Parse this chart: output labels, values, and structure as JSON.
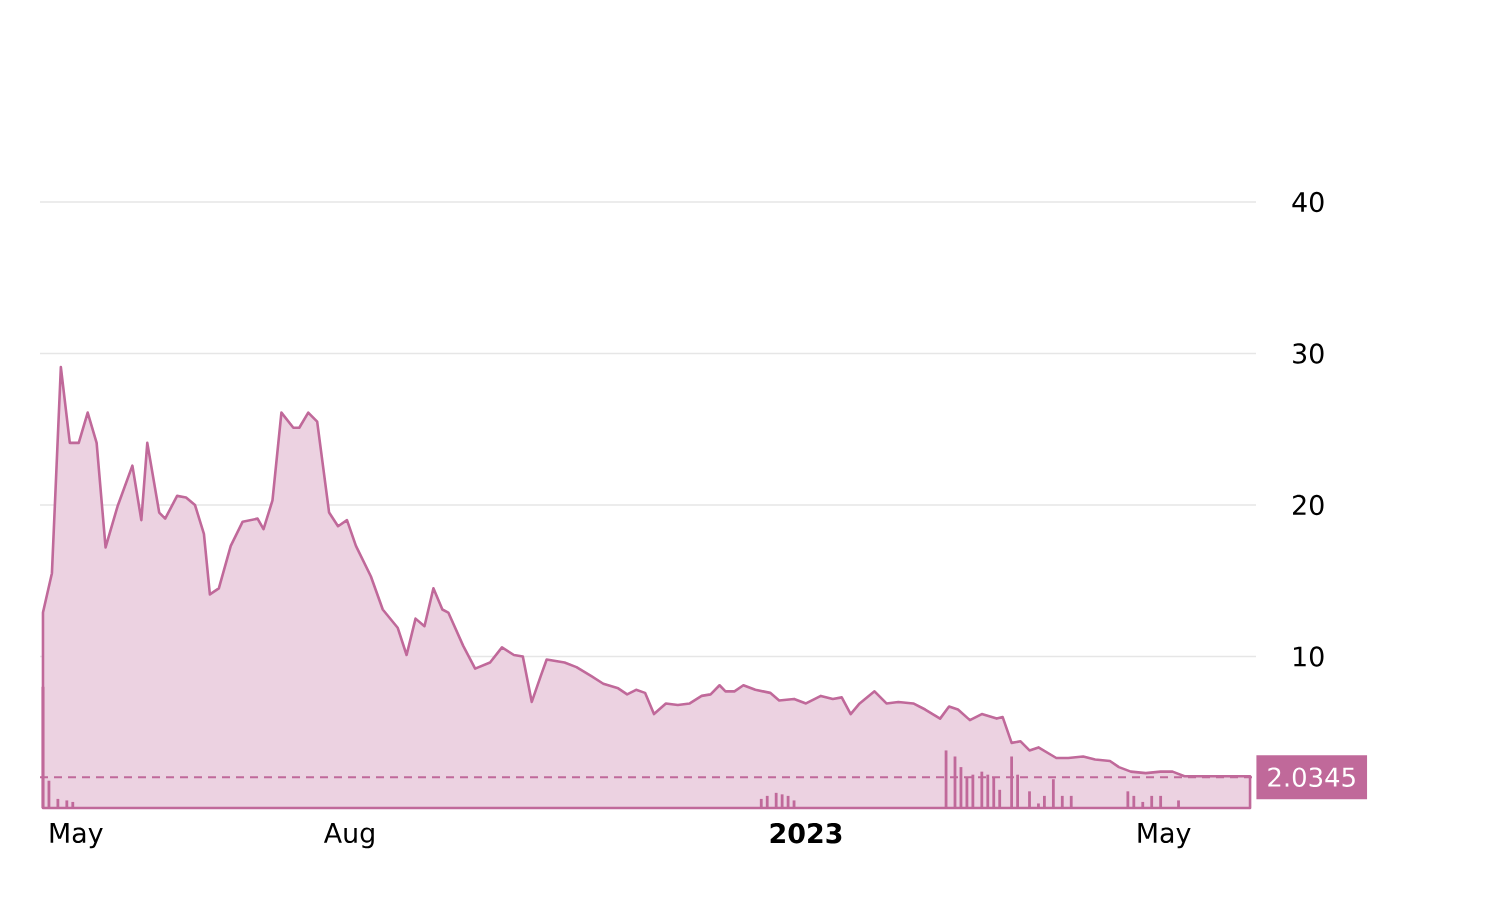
{
  "chart_data": {
    "type": "area",
    "xlim": [
      "2022-04-19",
      "2023-06-01"
    ],
    "xticks": [
      {
        "value": "2022-05-01",
        "label": "May"
      },
      {
        "value": "2022-08-01",
        "label": "Aug"
      },
      {
        "value": "2023-01-01",
        "label": "**2023**"
      },
      {
        "value": "2023-05-01",
        "label": "May"
      }
    ],
    "ylim": [
      0,
      40
    ],
    "yticks": [
      10,
      20,
      30,
      40
    ],
    "grid": "y",
    "ref_lines": [
      {
        "axis": "y",
        "value": 2.0345,
        "label": "2.0345",
        "color": "#c0699a",
        "line_style": "dashed"
      }
    ],
    "series": [
      {
        "color": "#c0699a",
        "x": [
          "2022-04-20",
          "2022-04-23",
          "2022-04-26",
          "2022-04-29",
          "2022-05-02",
          "2022-05-05",
          "2022-05-08",
          "2022-05-11",
          "2022-05-15",
          "2022-05-20",
          "2022-05-23",
          "2022-05-25",
          "2022-05-29",
          "2022-05-31",
          "2022-06-04",
          "2022-06-07",
          "2022-06-10",
          "2022-06-13",
          "2022-06-15",
          "2022-06-18",
          "2022-06-22",
          "2022-06-26",
          "2022-07-01",
          "2022-07-03",
          "2022-07-06",
          "2022-07-09",
          "2022-07-13",
          "2022-07-15",
          "2022-07-18",
          "2022-07-21",
          "2022-07-25",
          "2022-07-28",
          "2022-07-31",
          "2022-08-03",
          "2022-08-08",
          "2022-08-12",
          "2022-08-17",
          "2022-08-20",
          "2022-08-23",
          "2022-08-26",
          "2022-08-29",
          "2022-09-01",
          "2022-09-03",
          "2022-09-08",
          "2022-09-12",
          "2022-09-17",
          "2022-09-21",
          "2022-09-25",
          "2022-09-28",
          "2022-10-01",
          "2022-10-04",
          "2022-10-06",
          "2022-10-12",
          "2022-10-16",
          "2022-10-21",
          "2022-10-25",
          "2022-10-30",
          "2022-11-02",
          "2022-11-05",
          "2022-11-08",
          "2022-11-11",
          "2022-11-15",
          "2022-11-19",
          "2022-11-23",
          "2022-11-27",
          "2022-11-30",
          "2022-12-03",
          "2022-12-05",
          "2022-12-08",
          "2022-12-11",
          "2022-12-15",
          "2022-12-20",
          "2022-12-23",
          "2022-12-28",
          "2023-01-01",
          "2023-01-06",
          "2023-01-10",
          "2023-01-13",
          "2023-01-16",
          "2023-01-19",
          "2023-01-24",
          "2023-01-28",
          "2023-02-01",
          "2023-02-06",
          "2023-02-10",
          "2023-02-15",
          "2023-02-18",
          "2023-02-21",
          "2023-02-25",
          "2023-03-01",
          "2023-03-06",
          "2023-03-08",
          "2023-03-11",
          "2023-03-14",
          "2023-03-17",
          "2023-03-20",
          "2023-03-26",
          "2023-03-30",
          "2023-04-04",
          "2023-04-08",
          "2023-04-13",
          "2023-04-16",
          "2023-04-20",
          "2023-04-25",
          "2023-04-30",
          "2023-05-04",
          "2023-05-08",
          "2023-05-17",
          "2023-05-26",
          "2023-05-30"
        ],
        "values": [
          12.9,
          15.5,
          29.1,
          24.1,
          24.1,
          26.1,
          24.1,
          17.2,
          19.9,
          22.6,
          19.0,
          24.1,
          19.5,
          19.1,
          20.6,
          20.5,
          20.0,
          18.1,
          14.1,
          14.5,
          17.3,
          18.9,
          19.1,
          18.4,
          20.3,
          26.1,
          25.1,
          25.1,
          26.1,
          25.5,
          19.5,
          18.6,
          19.0,
          17.3,
          15.3,
          13.1,
          11.9,
          10.1,
          12.5,
          12.0,
          14.5,
          13.1,
          12.9,
          10.7,
          9.2,
          9.6,
          10.6,
          10.1,
          10.0,
          7.0,
          8.7,
          9.8,
          9.6,
          9.3,
          8.7,
          8.2,
          7.9,
          7.5,
          7.8,
          7.6,
          6.2,
          6.9,
          6.8,
          6.9,
          7.4,
          7.5,
          8.1,
          7.7,
          7.7,
          8.1,
          7.8,
          7.6,
          7.1,
          7.2,
          6.9,
          7.4,
          7.2,
          7.3,
          6.2,
          6.9,
          7.7,
          6.9,
          7.0,
          6.9,
          6.5,
          5.9,
          6.7,
          6.5,
          5.8,
          6.2,
          5.9,
          6.0,
          4.3,
          4.4,
          3.8,
          4.0,
          3.3,
          3.3,
          3.4,
          3.2,
          3.1,
          2.7,
          2.4,
          2.3,
          2.4,
          2.4,
          2.1,
          2.1,
          2.1,
          2.1
        ]
      },
      {
        "type": "bar",
        "color": "#c0699a",
        "x": [
          "2022-04-20",
          "2022-04-22",
          "2022-04-25",
          "2022-04-28",
          "2022-04-30",
          "2022-12-17",
          "2022-12-19",
          "2022-12-22",
          "2022-12-24",
          "2022-12-26",
          "2022-12-28",
          "2023-02-17",
          "2023-02-20",
          "2023-02-22",
          "2023-02-24",
          "2023-02-26",
          "2023-03-01",
          "2023-03-03",
          "2023-03-05",
          "2023-03-07",
          "2023-03-11",
          "2023-03-13",
          "2023-03-17",
          "2023-03-20",
          "2023-03-22",
          "2023-03-25",
          "2023-03-28",
          "2023-03-31",
          "2023-04-19",
          "2023-04-21",
          "2023-04-24",
          "2023-04-27",
          "2023-04-30",
          "2023-05-06"
        ],
        "values": [
          8.0,
          1.8,
          0.6,
          0.5,
          0.4,
          0.6,
          0.8,
          1.0,
          0.9,
          0.8,
          0.5,
          3.8,
          3.4,
          2.7,
          2.0,
          2.2,
          2.4,
          2.2,
          2.0,
          1.2,
          3.4,
          2.2,
          1.1,
          0.3,
          0.8,
          1.9,
          0.8,
          0.8,
          1.1,
          0.8,
          0.4,
          0.8,
          0.8,
          0.5
        ]
      }
    ]
  }
}
